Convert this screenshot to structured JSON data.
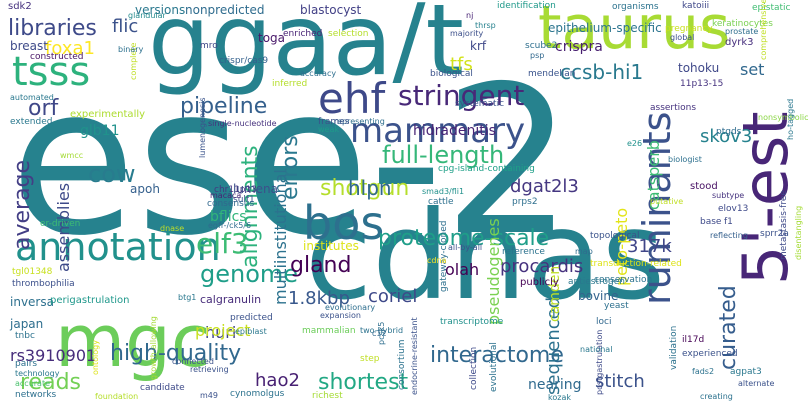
{
  "words": [
    {
      "text": "ese-2",
      "color": "#26828e"
    },
    {
      "text": "cdnas",
      "color": "#26828e"
    },
    {
      "text": "ggaa/t",
      "color": "#26828e"
    },
    {
      "text": "taurus",
      "color": "#a8db34"
    },
    {
      "text": "5'-est",
      "color": "#482677"
    },
    {
      "text": "mgc",
      "color": "#6ccd5a"
    },
    {
      "text": "bos",
      "color": "#2d708e"
    },
    {
      "text": "annotation",
      "color": "#21918c"
    },
    {
      "text": "ruminants",
      "color": "#3b528b"
    },
    {
      "text": "mammary",
      "color": "#3b528b"
    },
    {
      "text": "ehf",
      "color": "#3e4989"
    },
    {
      "text": "stringent",
      "color": "#482878"
    },
    {
      "text": "tsss",
      "color": "#2db27d"
    },
    {
      "text": "libraries",
      "color": "#3e4a89"
    },
    {
      "text": "full-length",
      "color": "#35b779"
    },
    {
      "text": "proteome-scale",
      "color": "#1f9e89"
    },
    {
      "text": "high-quality",
      "color": "#31688e"
    },
    {
      "text": "interactome",
      "color": "#31688e"
    },
    {
      "text": "genome",
      "color": "#1f9e89"
    },
    {
      "text": "shortest",
      "color": "#22a884"
    },
    {
      "text": "gland",
      "color": "#440154"
    },
    {
      "text": "reads",
      "color": "#73d055"
    },
    {
      "text": "elf3",
      "color": "#3dbc74"
    },
    {
      "text": "pipeline",
      "color": "#35608d"
    },
    {
      "text": "cow",
      "color": "#287c8e"
    },
    {
      "text": "alignments",
      "color": "#2db27d"
    },
    {
      "text": "errors",
      "color": "#2a788e"
    },
    {
      "text": "shotgun",
      "color": "#b5de2b"
    },
    {
      "text": "average",
      "color": "#433e85"
    },
    {
      "text": "curated",
      "color": "#365d8d"
    },
    {
      "text": "orf",
      "color": "#3f4788"
    },
    {
      "text": "rs3910901",
      "color": "#472d7b"
    },
    {
      "text": "olah",
      "color": "#440154"
    },
    {
      "text": "coriel",
      "color": "#3e4989"
    },
    {
      "text": "1.8kbp",
      "color": "#38588c"
    },
    {
      "text": "hlpn",
      "color": "#31688e"
    },
    {
      "text": "procardis",
      "color": "#46327e"
    },
    {
      "text": "dgat2l3",
      "color": "#453781"
    },
    {
      "text": "ccsb-hi1",
      "color": "#29798e"
    },
    {
      "text": "skov3",
      "color": "#26828e"
    },
    {
      "text": "317k",
      "color": "#404688"
    },
    {
      "text": "stitch",
      "color": "#3b528b"
    },
    {
      "text": "sequenced",
      "color": "#2c728e"
    },
    {
      "text": "hao2",
      "color": "#482173"
    },
    {
      "text": "huri",
      "color": "#414487"
    },
    {
      "text": "project",
      "color": "#c8e020"
    },
    {
      "text": "crispra",
      "color": "#481f70"
    },
    {
      "text": "foxa1",
      "color": "#fde725"
    },
    {
      "text": "tfs",
      "color": "#d2e21b"
    },
    {
      "text": "glb11",
      "color": "#20928c"
    },
    {
      "text": "flic",
      "color": "#3b528b"
    },
    {
      "text": "versions",
      "color": "#2a788e"
    },
    {
      "text": "nonpredicted",
      "color": "#2f6c8e"
    },
    {
      "text": "blastocyst",
      "color": "#424086"
    },
    {
      "text": "epithelium-specific",
      "color": "#2b748e"
    },
    {
      "text": "breast",
      "color": "#3e4a89"
    },
    {
      "text": "toga",
      "color": "#481769"
    },
    {
      "text": "krf",
      "color": "#3f4889"
    },
    {
      "text": "tohoku",
      "color": "#3f4889"
    },
    {
      "text": "set",
      "color": "#31688e"
    },
    {
      "text": "catsperb",
      "color": "#3dbc74"
    },
    {
      "text": "peto-peto",
      "color": "#e2e418"
    },
    {
      "text": "hidradenitis",
      "color": "#482475"
    },
    {
      "text": "assemblies",
      "color": "#3e4a89"
    },
    {
      "text": "multiinstitutional",
      "color": "#2c728e"
    },
    {
      "text": "bflics",
      "color": "#31b57b"
    },
    {
      "text": "lumena",
      "color": "#3c508b"
    },
    {
      "text": "apoh",
      "color": "#35608d"
    },
    {
      "text": "pseudogenes",
      "color": "#7ad151"
    },
    {
      "text": "camden",
      "color": "#bddf26"
    },
    {
      "text": "nearing",
      "color": "#306a8e"
    },
    {
      "text": "bovine",
      "color": "#33638d"
    },
    {
      "text": "inversa",
      "color": "#2d708e"
    },
    {
      "text": "perigastrulation",
      "color": "#1f988b"
    },
    {
      "text": "japan",
      "color": "#2e6e8e"
    },
    {
      "text": "calgranulin",
      "color": "#472c7a"
    },
    {
      "text": "institutes",
      "color": "#dde318"
    },
    {
      "text": "cpg-island-containing",
      "color": "#1fa088"
    },
    {
      "text": "crispr/cas9",
      "color": "#34618d"
    },
    {
      "text": "glandular",
      "color": "#238a8d"
    },
    {
      "text": "sdk2",
      "color": "#46327e"
    },
    {
      "text": "identification",
      "color": "#1f998a"
    },
    {
      "text": "katoiii",
      "color": "#3f4889"
    },
    {
      "text": "epistatic",
      "color": "#40bd72"
    },
    {
      "text": "enriched",
      "color": "#482475"
    },
    {
      "text": "selection",
      "color": "#b5de2b"
    },
    {
      "text": "mendelian",
      "color": "#3a548c"
    },
    {
      "text": "scube2",
      "color": "#2e6f8e"
    },
    {
      "text": "dyrk3",
      "color": "#472f7d"
    },
    {
      "text": "keratinocytes",
      "color": "#7ad151"
    },
    {
      "text": "organisms",
      "color": "#2c738e"
    },
    {
      "text": "pregnancy",
      "color": "#c8e020"
    },
    {
      "text": "prostate",
      "color": "#2e6e8e"
    },
    {
      "text": "global",
      "color": "#3c508b"
    },
    {
      "text": "thrsp",
      "color": "#26818e"
    },
    {
      "text": "majority",
      "color": "#3c4f8a"
    },
    {
      "text": "nj",
      "color": "#482475"
    },
    {
      "text": "psp",
      "color": "#31688e"
    },
    {
      "text": "ptgds",
      "color": "#2f6c8e"
    },
    {
      "text": "nonsymbolic",
      "color": "#8bd646"
    },
    {
      "text": "biological",
      "color": "#3b528b"
    },
    {
      "text": "accuracy",
      "color": "#2e6e8e"
    },
    {
      "text": "systematic",
      "color": "#3b528b"
    },
    {
      "text": "assertions",
      "color": "#46337f"
    },
    {
      "text": "11p13-15",
      "color": "#46337f"
    },
    {
      "text": "comprehensive",
      "color": "#c0df25"
    },
    {
      "text": "complete",
      "color": "#c0df25"
    },
    {
      "text": "binary",
      "color": "#2d708e"
    },
    {
      "text": "mro",
      "color": "#3f4788"
    },
    {
      "text": "constructed",
      "color": "#471365"
    },
    {
      "text": "automated",
      "color": "#2a788e"
    },
    {
      "text": "experimentally",
      "color": "#addc30"
    },
    {
      "text": "extended",
      "color": "#2a788e"
    },
    {
      "text": "lumenogenesis",
      "color": "#3a538b"
    },
    {
      "text": "single-nucleotide",
      "color": "#46327e"
    },
    {
      "text": "inferred",
      "color": "#b5de2b"
    },
    {
      "text": "representing",
      "color": "#2e6f8e"
    },
    {
      "text": "frames",
      "color": "#3b528b"
    },
    {
      "text": "weak",
      "color": "#1e9b8a"
    },
    {
      "text": "e26",
      "color": "#21918c"
    },
    {
      "text": "biologist",
      "color": "#2d708e"
    },
    {
      "text": "ho-tagged",
      "color": "#2a778e"
    },
    {
      "text": "stood",
      "color": "#471063"
    },
    {
      "text": "subtype",
      "color": "#46337f"
    },
    {
      "text": "elov13",
      "color": "#3e4989"
    },
    {
      "text": "base",
      "color": "#3e4a89"
    },
    {
      "text": "f1",
      "color": "#3e4a89"
    },
    {
      "text": "sprr2a",
      "color": "#3b528b"
    },
    {
      "text": "reflecting",
      "color": "#35608d"
    },
    {
      "text": "metastasis-free",
      "color": "#3e4989"
    },
    {
      "text": "disentangling",
      "color": "#a5db36"
    },
    {
      "text": "transduction-related",
      "color": "#dde318"
    },
    {
      "text": "conservation",
      "color": "#2c728e"
    },
    {
      "text": "publicly",
      "color": "#440154"
    },
    {
      "text": "antiestrogen",
      "color": "#2a788e"
    },
    {
      "text": "reference",
      "color": "#2c728e"
    },
    {
      "text": "map",
      "color": "#2f6c8e"
    },
    {
      "text": "topological",
      "color": "#3a538b"
    },
    {
      "text": "prps2",
      "color": "#2e6f8e"
    },
    {
      "text": "putative",
      "color": "#c0df25"
    },
    {
      "text": "smad3/fli1",
      "color": "#21918c"
    },
    {
      "text": "cattle",
      "color": "#2d708e"
    },
    {
      "text": "chr11p13",
      "color": "#453781"
    },
    {
      "text": "sulf1",
      "color": "#3c508b"
    },
    {
      "text": "consensus",
      "color": "#31688e"
    },
    {
      "text": "macaca",
      "color": "#482475"
    },
    {
      "text": "egfr-/ck5/6",
      "color": "#2f6c8e"
    },
    {
      "text": "er-driven",
      "color": "#3dbc74"
    },
    {
      "text": "dnase",
      "color": "#c0df25"
    },
    {
      "text": "wmcc",
      "color": "#a5db36"
    },
    {
      "text": "tgl01348",
      "color": "#c8e020"
    },
    {
      "text": "thrombophilia",
      "color": "#3c508b"
    },
    {
      "text": "mammalian",
      "color": "#6ccd5a"
    },
    {
      "text": "two-hybrid",
      "color": "#2c728e"
    },
    {
      "text": "gateway-cloned",
      "color": "#2d708e"
    },
    {
      "text": "evolutionary",
      "color": "#2e6e8e"
    },
    {
      "text": "expansion",
      "color": "#3b528b"
    },
    {
      "text": "all-by-all",
      "color": "#3b528b"
    },
    {
      "text": "tnbc",
      "color": "#2c728e"
    },
    {
      "text": "pairs",
      "color": "#2d708e"
    },
    {
      "text": "technology",
      "color": "#2a788e"
    },
    {
      "text": "accurate",
      "color": "#4ac16d"
    },
    {
      "text": "networks",
      "color": "#2d708e"
    },
    {
      "text": "predicted",
      "color": "#3b528b"
    },
    {
      "text": "epiblast",
      "color": "#2a788e"
    },
    {
      "text": "btg1",
      "color": "#2a788e"
    },
    {
      "text": "connected",
      "color": "#3b528b"
    },
    {
      "text": "retrieving",
      "color": "#3b528b"
    },
    {
      "text": "candidate",
      "color": "#3e4a89"
    },
    {
      "text": "cynomolgus",
      "color": "#2c728e"
    },
    {
      "text": "richest",
      "color": "#a5db36"
    },
    {
      "text": "m49",
      "color": "#3b528b"
    },
    {
      "text": "step",
      "color": "#c0df25"
    },
    {
      "text": "c12",
      "color": "#31688e"
    },
    {
      "text": "pcsk5",
      "color": "#2e6e8e"
    },
    {
      "text": "consortium",
      "color": "#2c728e"
    },
    {
      "text": "endocrine-resistant",
      "color": "#3b528b"
    },
    {
      "text": "evolutional",
      "color": "#2c728e"
    },
    {
      "text": "collection",
      "color": "#3e4a89"
    },
    {
      "text": "transcriptome",
      "color": "#21918c"
    },
    {
      "text": "loci",
      "color": "#31688e"
    },
    {
      "text": "yeast",
      "color": "#2d708e"
    },
    {
      "text": "postgastrulation",
      "color": "#3e4a89"
    },
    {
      "text": "il17d",
      "color": "#440154"
    },
    {
      "text": "experienced",
      "color": "#3b528b"
    },
    {
      "text": "national",
      "color": "#2a788e"
    },
    {
      "text": "validation",
      "color": "#2c728e"
    },
    {
      "text": "fads2",
      "color": "#2c728e"
    },
    {
      "text": "agpat3",
      "color": "#2a788e"
    },
    {
      "text": "alternate",
      "color": "#3b528b"
    },
    {
      "text": "kozak",
      "color": "#2a788e"
    },
    {
      "text": "creating",
      "color": "#2c728e"
    },
    {
      "text": "foundation",
      "color": "#b5de2b"
    },
    {
      "text": "ontology",
      "color": "#dde318"
    },
    {
      "text": "growth-allowing",
      "color": "#a5db36"
    },
    {
      "text": "cdna",
      "color": "#fde725"
    }
  ]
}
